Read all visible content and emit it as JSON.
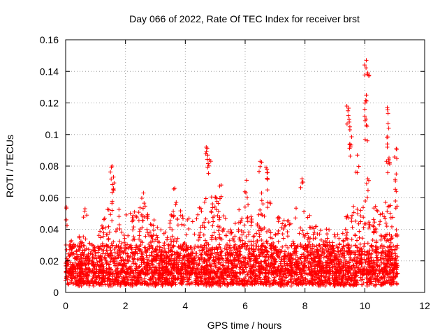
{
  "chart_data": {
    "type": "scatter",
    "title": "Day 066 of 2022, Rate Of TEC Index for receiver brst",
    "xlabel": "GPS time / hours",
    "ylabel": "ROTI / TECUs",
    "xlim": [
      0,
      12
    ],
    "ylim": [
      0,
      0.16
    ],
    "xticks": [
      "0",
      "2",
      "4",
      "6",
      "8",
      "10",
      "12"
    ],
    "yticks": [
      "0",
      "0.02",
      "0.04",
      "0.06",
      "0.08",
      "0.1",
      "0.12",
      "0.14",
      "0.16"
    ],
    "grid": true,
    "marker": "+",
    "series": [
      {
        "name": "ROTI",
        "color": "#ff0000",
        "x_range": [
          0,
          11.1
        ],
        "baseline_range": [
          0.005,
          0.03
        ],
        "notable_points": [
          {
            "x": 0.02,
            "y": 0.054
          },
          {
            "x": 0.02,
            "y": 0.046
          },
          {
            "x": 0.65,
            "y": 0.053
          },
          {
            "x": 1.55,
            "y": 0.08
          },
          {
            "x": 1.6,
            "y": 0.073
          },
          {
            "x": 1.6,
            "y": 0.066
          },
          {
            "x": 2.6,
            "y": 0.063
          },
          {
            "x": 3.65,
            "y": 0.066
          },
          {
            "x": 4.7,
            "y": 0.092
          },
          {
            "x": 4.75,
            "y": 0.087
          },
          {
            "x": 4.8,
            "y": 0.084
          },
          {
            "x": 5.2,
            "y": 0.068
          },
          {
            "x": 6.05,
            "y": 0.071
          },
          {
            "x": 6.5,
            "y": 0.083
          },
          {
            "x": 6.7,
            "y": 0.079
          },
          {
            "x": 6.75,
            "y": 0.076
          },
          {
            "x": 7.9,
            "y": 0.072
          },
          {
            "x": 9.4,
            "y": 0.118
          },
          {
            "x": 9.45,
            "y": 0.112
          },
          {
            "x": 9.5,
            "y": 0.103
          },
          {
            "x": 9.5,
            "y": 0.094
          },
          {
            "x": 9.75,
            "y": 0.087
          },
          {
            "x": 10.05,
            "y": 0.147
          },
          {
            "x": 10.1,
            "y": 0.139
          },
          {
            "x": 10.05,
            "y": 0.125
          },
          {
            "x": 10.0,
            "y": 0.116
          },
          {
            "x": 10.05,
            "y": 0.106
          },
          {
            "x": 10.1,
            "y": 0.072
          },
          {
            "x": 10.75,
            "y": 0.117
          },
          {
            "x": 10.8,
            "y": 0.104
          },
          {
            "x": 10.75,
            "y": 0.092
          },
          {
            "x": 10.8,
            "y": 0.084
          },
          {
            "x": 11.05,
            "y": 0.091
          },
          {
            "x": 11.05,
            "y": 0.075
          },
          {
            "x": 11.05,
            "y": 0.064
          }
        ],
        "envelope": [
          {
            "x": 0.0,
            "y": 0.03
          },
          {
            "x": 0.5,
            "y": 0.038
          },
          {
            "x": 1.0,
            "y": 0.03
          },
          {
            "x": 1.3,
            "y": 0.048
          },
          {
            "x": 1.55,
            "y": 0.062
          },
          {
            "x": 1.9,
            "y": 0.048
          },
          {
            "x": 2.2,
            "y": 0.052
          },
          {
            "x": 2.6,
            "y": 0.058
          },
          {
            "x": 3.0,
            "y": 0.045
          },
          {
            "x": 3.3,
            "y": 0.04
          },
          {
            "x": 3.65,
            "y": 0.058
          },
          {
            "x": 4.0,
            "y": 0.052
          },
          {
            "x": 4.3,
            "y": 0.048
          },
          {
            "x": 4.7,
            "y": 0.062
          },
          {
            "x": 5.1,
            "y": 0.06
          },
          {
            "x": 5.5,
            "y": 0.04
          },
          {
            "x": 6.0,
            "y": 0.065
          },
          {
            "x": 6.3,
            "y": 0.04
          },
          {
            "x": 6.6,
            "y": 0.068
          },
          {
            "x": 7.0,
            "y": 0.05
          },
          {
            "x": 7.5,
            "y": 0.048
          },
          {
            "x": 7.9,
            "y": 0.06
          },
          {
            "x": 8.3,
            "y": 0.045
          },
          {
            "x": 8.8,
            "y": 0.04
          },
          {
            "x": 9.2,
            "y": 0.04
          },
          {
            "x": 9.5,
            "y": 0.07
          },
          {
            "x": 9.8,
            "y": 0.058
          },
          {
            "x": 10.1,
            "y": 0.068
          },
          {
            "x": 10.5,
            "y": 0.052
          },
          {
            "x": 10.8,
            "y": 0.06
          },
          {
            "x": 11.1,
            "y": 0.045
          }
        ]
      }
    ]
  }
}
